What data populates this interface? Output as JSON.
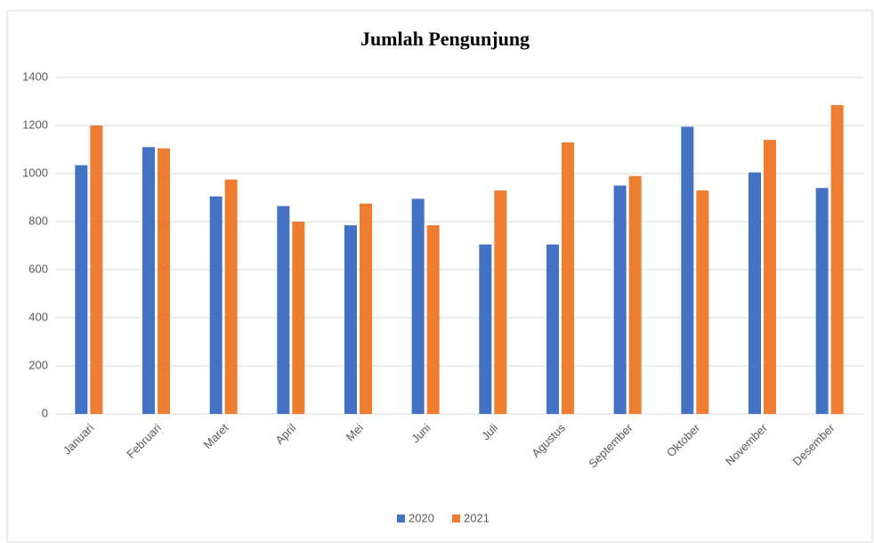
{
  "chart_data": {
    "type": "bar",
    "title": "Jumlah Pengunjung",
    "categories": [
      "Januari",
      "Februari",
      "Maret",
      "April",
      "Mei",
      "Juni",
      "Juli",
      "Agustus",
      "September",
      "Oktober",
      "November",
      "Desember"
    ],
    "series": [
      {
        "name": "2020",
        "color": "#4472c4",
        "values": [
          1035,
          1110,
          905,
          865,
          785,
          895,
          705,
          705,
          950,
          1195,
          1005,
          940
        ]
      },
      {
        "name": "2021",
        "color": "#ed7d31",
        "values": [
          1200,
          1105,
          975,
          800,
          875,
          785,
          930,
          1130,
          990,
          930,
          1140,
          1285
        ]
      }
    ],
    "ylim": [
      0,
      1400
    ],
    "yticks": [
      0,
      200,
      400,
      600,
      800,
      1000,
      1200,
      1400
    ],
    "grid": true,
    "legend": "bottom"
  }
}
